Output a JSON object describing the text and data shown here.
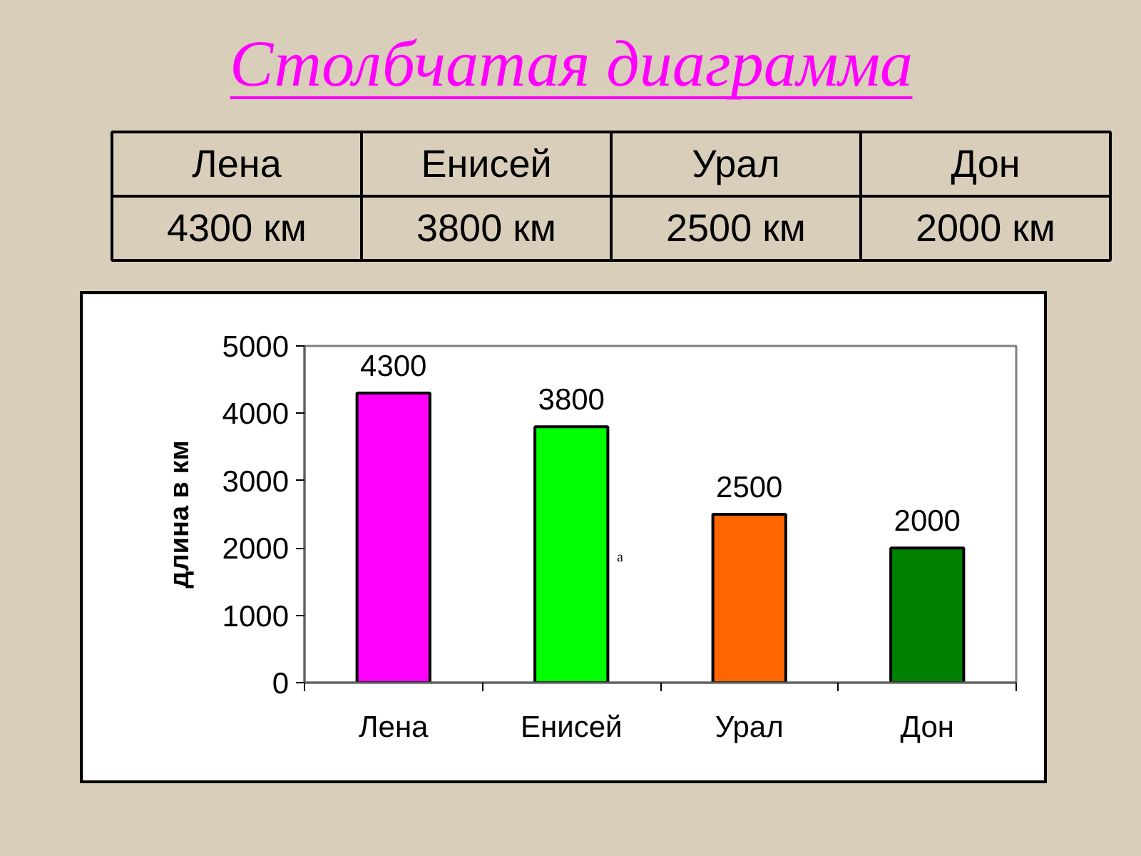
{
  "chart_data": [
    {
      "type": "other",
      "title": "Столбчатая диаграмма",
      "categories": [
        "Лена",
        "Енисей",
        "Урал",
        "Дон"
      ],
      "value_labels": [
        "4300 км",
        "3800 км",
        "2500 км",
        "2000 км"
      ]
    },
    {
      "type": "bar",
      "categories": [
        "Лена",
        "Енисей",
        "Урал",
        "Дон"
      ],
      "values": [
        4300,
        3800,
        2500,
        2000
      ],
      "colors": [
        "#ff00ff",
        "#00ff00",
        "#ff6600",
        "#008000"
      ],
      "ylabel": "длина в км",
      "ylim": [
        0,
        5000
      ],
      "yticks": [
        0,
        1000,
        2000,
        3000,
        4000,
        5000
      ],
      "data_labels": true,
      "annotations": [
        "а"
      ]
    }
  ]
}
